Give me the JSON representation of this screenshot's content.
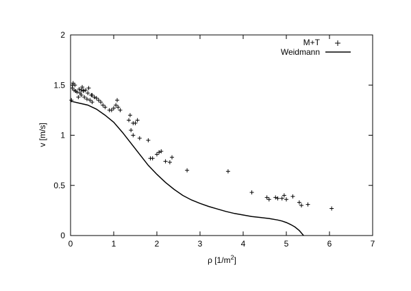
{
  "chart_data": {
    "type": "scatter",
    "title": "",
    "xlabel": "ρ [1/m",
    "xlabel_sup": "2",
    "xlabel_close": "]",
    "ylabel": "v [m/s]",
    "xlim": [
      0,
      7
    ],
    "ylim": [
      0,
      2
    ],
    "xticks": [
      "0",
      "1",
      "2",
      "3",
      "4",
      "5",
      "6",
      "7"
    ],
    "yticks": [
      "0",
      "0.5",
      "1",
      "1.5",
      "2"
    ],
    "grid": false,
    "legend_position": "top-right",
    "series": [
      {
        "name": "M+T",
        "style": "points",
        "marker": "plus",
        "x": [
          0.02,
          0.04,
          0.06,
          0.08,
          0.1,
          0.12,
          0.15,
          0.18,
          0.2,
          0.22,
          0.25,
          0.27,
          0.3,
          0.32,
          0.35,
          0.38,
          0.4,
          0.42,
          0.45,
          0.48,
          0.5,
          0.55,
          0.6,
          0.65,
          0.7,
          0.75,
          0.8,
          0.9,
          0.95,
          1.0,
          1.05,
          1.08,
          1.1,
          1.15,
          1.35,
          1.4,
          1.45,
          1.5,
          1.55,
          1.38,
          1.45,
          1.6,
          1.8,
          1.85,
          1.9,
          2.0,
          2.05,
          2.1,
          2.2,
          2.3,
          2.35,
          2.7,
          3.65,
          4.2,
          4.55,
          4.6,
          4.75,
          4.8,
          4.9,
          4.95,
          5.0,
          5.15,
          5.3,
          5.35,
          5.5,
          6.05,
          0.05,
          0.25,
          0.3,
          0.5
        ],
        "y": [
          1.35,
          1.47,
          1.52,
          1.45,
          1.5,
          1.44,
          1.43,
          1.38,
          1.46,
          1.42,
          1.4,
          1.48,
          1.44,
          1.38,
          1.45,
          1.36,
          1.42,
          1.47,
          1.35,
          1.4,
          1.33,
          1.38,
          1.37,
          1.35,
          1.33,
          1.3,
          1.28,
          1.25,
          1.25,
          1.27,
          1.3,
          1.35,
          1.28,
          1.25,
          1.15,
          1.05,
          1.12,
          1.12,
          1.15,
          1.2,
          1.0,
          0.97,
          0.95,
          0.77,
          0.77,
          0.81,
          0.83,
          0.84,
          0.74,
          0.73,
          0.78,
          0.65,
          0.64,
          0.43,
          0.38,
          0.36,
          0.38,
          0.37,
          0.37,
          0.4,
          0.36,
          0.39,
          0.33,
          0.3,
          0.31,
          0.27,
          1.5,
          1.45,
          1.45,
          1.4
        ]
      },
      {
        "name": "Weidmann",
        "style": "line",
        "x": [
          0,
          0.2,
          0.4,
          0.6,
          0.8,
          1.0,
          1.2,
          1.4,
          1.6,
          1.8,
          2.0,
          2.2,
          2.4,
          2.6,
          2.8,
          3.0,
          3.2,
          3.4,
          3.6,
          3.8,
          4.0,
          4.2,
          4.4,
          4.6,
          4.8,
          4.9,
          5.0,
          5.1,
          5.2,
          5.3,
          5.35,
          5.4
        ],
        "y": [
          1.34,
          1.32,
          1.3,
          1.26,
          1.2,
          1.13,
          1.03,
          0.92,
          0.81,
          0.7,
          0.61,
          0.53,
          0.46,
          0.4,
          0.355,
          0.32,
          0.29,
          0.265,
          0.24,
          0.22,
          0.205,
          0.19,
          0.18,
          0.17,
          0.155,
          0.145,
          0.13,
          0.11,
          0.085,
          0.05,
          0.025,
          0.0
        ]
      }
    ]
  }
}
